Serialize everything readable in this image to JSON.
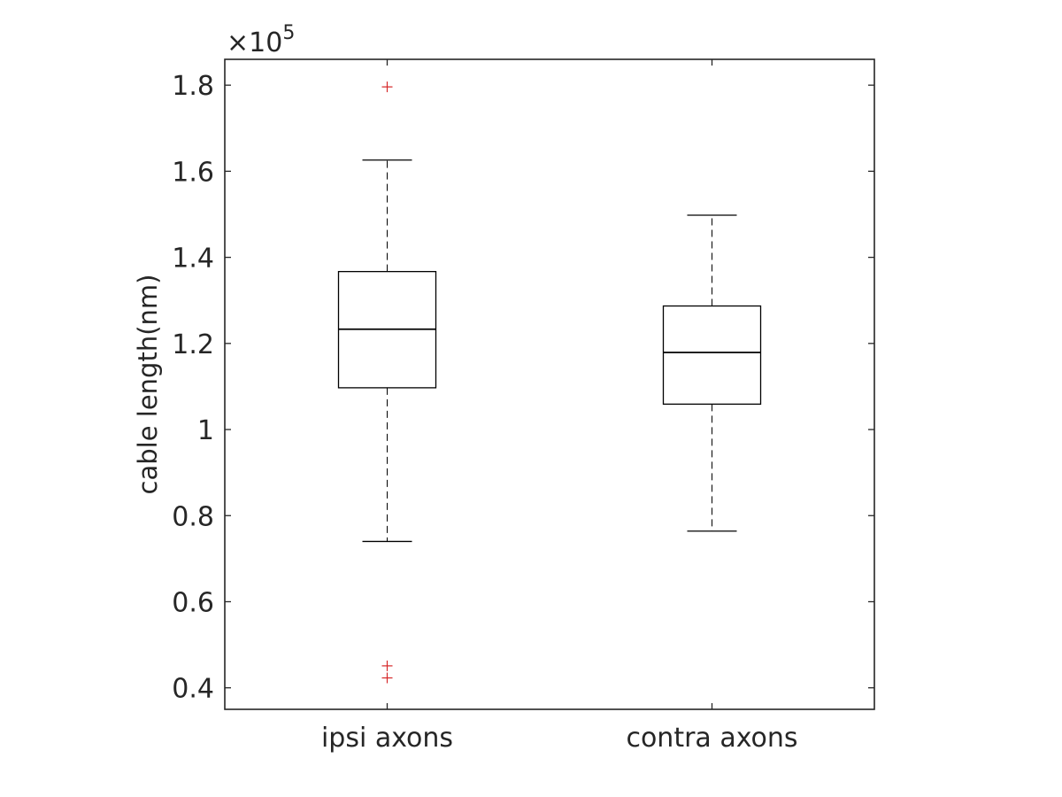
{
  "chart_data": {
    "type": "box",
    "title": "",
    "xlabel": "",
    "ylabel": "cable length(nm)",
    "y_multiplier_prefix": "×10",
    "y_multiplier_exponent": "5",
    "ylim": [
      0.35,
      1.86
    ],
    "yticks": [
      {
        "value": 0.4,
        "label": "0.4"
      },
      {
        "value": 0.6,
        "label": "0.6"
      },
      {
        "value": 0.8,
        "label": "0.8"
      },
      {
        "value": 1.0,
        "label": "1"
      },
      {
        "value": 1.2,
        "label": "1.2"
      },
      {
        "value": 1.4,
        "label": "1.4"
      },
      {
        "value": 1.6,
        "label": "1.6"
      },
      {
        "value": 1.8,
        "label": "1.8"
      }
    ],
    "categories": [
      "ipsi axons",
      "contra axons"
    ],
    "boxes": [
      {
        "category": "ipsi axons",
        "whisker_low": 0.74,
        "q1": 1.097,
        "median": 1.233,
        "q3": 1.367,
        "whisker_high": 1.626,
        "outliers": [
          1.796,
          0.451,
          0.423
        ]
      },
      {
        "category": "contra axons",
        "whisker_low": 0.764,
        "q1": 1.059,
        "median": 1.179,
        "q3": 1.287,
        "whisker_high": 1.498,
        "outliers": []
      }
    ],
    "colors": {
      "box": "#000000",
      "outlier": "#d62728",
      "axis": "#262626"
    }
  }
}
